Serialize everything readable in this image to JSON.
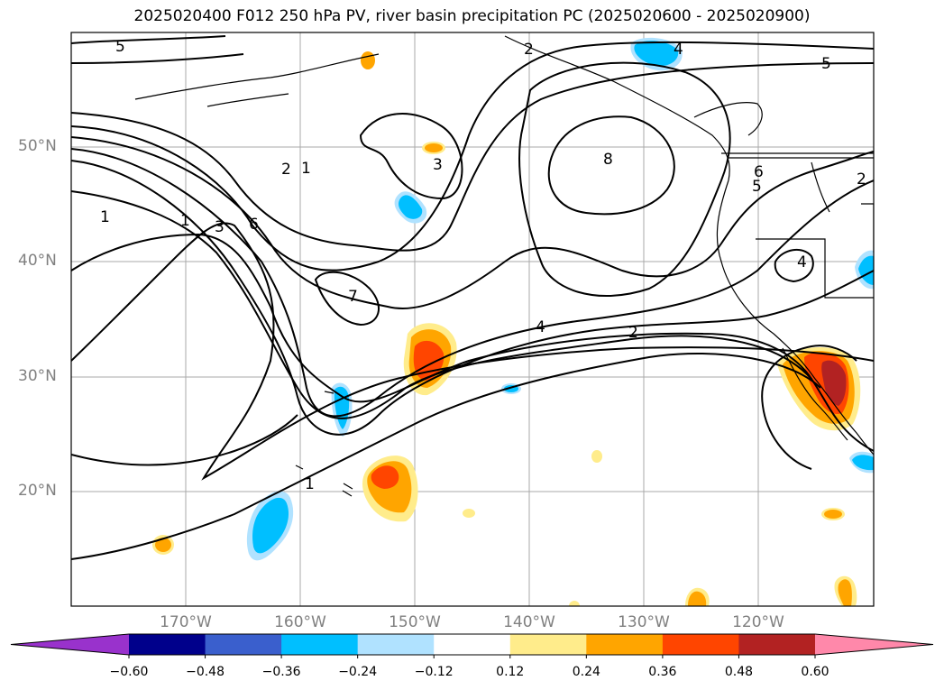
{
  "title": "2025020400 F012 250 hPa PV, river basin precipitation PC (2025020600 - 2025020900)",
  "lat_labels": [
    "50°N",
    "40°N",
    "30°N",
    "20°N"
  ],
  "lon_labels": [
    "170°W",
    "160°W",
    "150°W",
    "140°W",
    "130°W",
    "120°W"
  ],
  "colorbar": {
    "ticks": [
      "−0.60",
      "−0.48",
      "−0.36",
      "−0.24",
      "−0.12",
      "0.12",
      "0.24",
      "0.36",
      "0.48",
      "0.60"
    ],
    "colors": [
      "#9932cc",
      "#00008b",
      "#3a5fcd",
      "#00bfff",
      "#b0e2ff",
      "#ffffff",
      "#ffec8b",
      "#ffa500",
      "#ff4500",
      "#b22222",
      "#ff88aa"
    ],
    "extend": "both"
  },
  "contour_labels": [
    "5",
    "2",
    "4",
    "5",
    "8",
    "3",
    "1",
    "2",
    "6",
    "3",
    "1",
    "1",
    "7",
    "4",
    "2",
    "1",
    "5",
    "6",
    "2",
    "4"
  ],
  "features": {
    "contour_field": "250 hPa PV",
    "shading_field": "river basin precipitation PC",
    "graticule": "gray gridlines",
    "coastlines": "black",
    "boundaries": "state/country borders"
  }
}
